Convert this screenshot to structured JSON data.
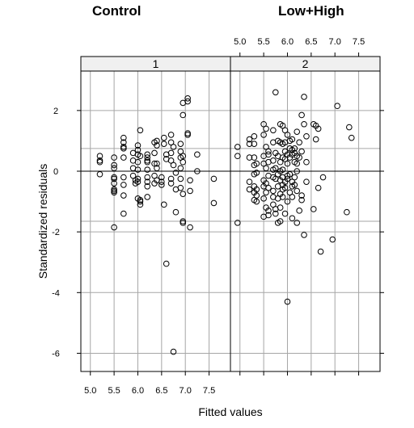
{
  "titles": {
    "left": "Control",
    "right": "Low+High"
  },
  "chart_data": {
    "type": "scatter",
    "xlabel": "Fitted values",
    "ylabel": "Standardized residuals",
    "xlim": [
      4.8,
      7.95
    ],
    "ylim": [
      -6.6,
      3.3
    ],
    "x_ticks": [
      5.0,
      5.5,
      6.0,
      6.5,
      7.0,
      7.5
    ],
    "x_tick_labels": [
      "5.0",
      "5.5",
      "6.0",
      "6.5",
      "7.0",
      "7.5"
    ],
    "y_ticks": [
      -6,
      -4,
      -2,
      0,
      2
    ],
    "y_tick_labels": [
      "-6",
      "-4",
      "-2",
      "0",
      "2"
    ],
    "grid": true,
    "reference_lines": {
      "horizontal": [
        0
      ],
      "grey_horizontal": [
        0.75,
        -1.65
      ]
    },
    "panels": [
      {
        "strip_label": "1",
        "x": [
          5.2,
          5.2,
          5.2,
          5.2,
          5.5,
          5.5,
          5.5,
          5.5,
          5.5,
          5.5,
          5.5,
          5.5,
          5.5,
          5.5,
          5.7,
          5.7,
          5.7,
          5.7,
          5.7,
          5.7,
          5.7,
          5.7,
          5.7,
          5.9,
          5.9,
          5.9,
          5.9,
          5.95,
          5.95,
          6.0,
          6.0,
          6.0,
          6.0,
          6.0,
          6.0,
          6.0,
          6.0,
          6.05,
          6.05,
          6.05,
          6.05,
          6.05,
          6.2,
          6.2,
          6.2,
          6.2,
          6.2,
          6.2,
          6.2,
          6.2,
          6.2,
          6.35,
          6.35,
          6.35,
          6.35,
          6.35,
          6.4,
          6.4,
          6.4,
          6.4,
          6.4,
          6.5,
          6.5,
          6.5,
          6.55,
          6.55,
          6.55,
          6.6,
          6.6,
          6.6,
          6.7,
          6.7,
          6.7,
          6.7,
          6.7,
          6.7,
          6.75,
          6.75,
          6.8,
          6.8,
          6.8,
          6.9,
          6.9,
          6.9,
          6.9,
          6.9,
          6.9,
          6.95,
          6.95,
          6.95,
          6.95,
          6.95,
          6.95,
          6.95,
          7.05,
          7.05,
          7.05,
          7.05,
          7.1,
          7.1,
          7.1,
          7.25,
          7.25,
          7.6,
          7.6,
          6.75
        ],
        "y": [
          0.5,
          0.35,
          0.3,
          -0.1,
          0.45,
          0.2,
          0.1,
          -0.25,
          -0.4,
          -0.6,
          -0.65,
          -0.7,
          -0.2,
          -1.85,
          1.1,
          0.95,
          0.8,
          0.75,
          0.45,
          -0.2,
          -0.45,
          -0.8,
          -1.4,
          0.6,
          0.35,
          0.1,
          -0.15,
          -0.3,
          -0.4,
          0.85,
          0.7,
          0.55,
          0.3,
          0.05,
          -0.25,
          -0.35,
          -0.9,
          1.35,
          0.5,
          -0.95,
          -1.0,
          -1.1,
          0.55,
          0.45,
          0.35,
          0.3,
          0.05,
          -0.2,
          -0.35,
          -0.5,
          -0.85,
          0.95,
          0.6,
          0.25,
          -0.15,
          -0.4,
          1.0,
          0.85,
          0.25,
          0.1,
          -0.3,
          -0.2,
          -0.35,
          -0.45,
          1.1,
          0.9,
          -1.1,
          0.55,
          0.4,
          -3.05,
          1.2,
          0.95,
          0.6,
          0.35,
          -0.25,
          -0.4,
          0.8,
          0.2,
          -0.05,
          -0.6,
          -1.35,
          0.9,
          0.65,
          0.45,
          0.1,
          -0.25,
          -0.55,
          2.25,
          1.85,
          0.5,
          0.3,
          -0.75,
          -1.65,
          -1.7,
          2.4,
          2.3,
          1.25,
          1.2,
          -0.3,
          -0.65,
          -1.85,
          0.55,
          0.0,
          -0.25,
          -1.05,
          -5.95
        ],
        "series_name": ""
      },
      {
        "strip_label": "2",
        "x": [
          4.95,
          4.95,
          4.95,
          5.2,
          5.2,
          5.2,
          5.2,
          5.2,
          5.3,
          5.3,
          5.3,
          5.3,
          5.3,
          5.3,
          5.3,
          5.3,
          5.35,
          5.35,
          5.35,
          5.35,
          5.35,
          5.5,
          5.5,
          5.5,
          5.5,
          5.5,
          5.5,
          5.5,
          5.5,
          5.55,
          5.55,
          5.55,
          5.55,
          5.55,
          5.55,
          5.6,
          5.6,
          5.6,
          5.6,
          5.6,
          5.6,
          5.6,
          5.7,
          5.7,
          5.7,
          5.7,
          5.7,
          5.7,
          5.7,
          5.7,
          5.75,
          5.75,
          5.75,
          5.75,
          5.75,
          5.75,
          5.8,
          5.8,
          5.8,
          5.8,
          5.8,
          5.8,
          5.85,
          5.85,
          5.85,
          5.85,
          5.85,
          5.85,
          5.85,
          5.9,
          5.9,
          5.9,
          5.9,
          5.9,
          5.9,
          5.9,
          5.9,
          5.95,
          5.95,
          5.95,
          5.95,
          5.95,
          5.95,
          5.95,
          6.0,
          6.0,
          6.0,
          6.0,
          6.0,
          6.0,
          6.05,
          6.05,
          6.05,
          6.05,
          6.05,
          6.1,
          6.1,
          6.1,
          6.1,
          6.1,
          6.1,
          6.15,
          6.15,
          6.15,
          6.15,
          6.15,
          6.2,
          6.2,
          6.2,
          6.2,
          6.2,
          6.25,
          6.25,
          6.25,
          6.3,
          6.3,
          6.3,
          6.35,
          6.35,
          6.4,
          6.4,
          6.4,
          6.55,
          6.55,
          6.6,
          6.6,
          6.65,
          6.65,
          6.7,
          6.75,
          6.95,
          7.05,
          7.25,
          7.3,
          7.35,
          6.35,
          6.0,
          5.85,
          6.2,
          6.1,
          6.3
        ],
        "y": [
          0.8,
          0.5,
          -1.7,
          1.05,
          0.9,
          0.45,
          -0.35,
          -0.6,
          1.15,
          0.9,
          0.45,
          0.2,
          -0.1,
          -0.5,
          -0.7,
          -0.95,
          0.25,
          -0.05,
          -0.6,
          -0.8,
          -1.0,
          1.55,
          1.2,
          0.5,
          0.25,
          -0.3,
          -0.5,
          -0.9,
          -1.5,
          1.4,
          0.8,
          0.1,
          -0.4,
          -0.7,
          -1.2,
          0.65,
          0.55,
          0.3,
          -0.15,
          -0.55,
          -1.3,
          -1.45,
          1.35,
          0.95,
          0.35,
          0.05,
          -0.2,
          -0.65,
          -0.85,
          -1.1,
          2.6,
          0.6,
          0.1,
          -0.25,
          -1.25,
          -1.4,
          1.0,
          0.5,
          -0.1,
          -0.5,
          -0.9,
          -1.7,
          1.55,
          0.95,
          0.3,
          0.0,
          -0.3,
          -0.75,
          -1.2,
          1.5,
          0.9,
          0.45,
          0.05,
          -0.2,
          -0.45,
          -0.6,
          -0.85,
          1.35,
          0.95,
          0.65,
          0.4,
          -0.35,
          -0.55,
          -1.4,
          1.2,
          0.55,
          0.25,
          -0.15,
          -0.25,
          -1.0,
          1.0,
          0.75,
          0.45,
          -0.1,
          -0.7,
          1.05,
          0.7,
          0.55,
          -0.35,
          -0.5,
          -0.85,
          0.75,
          0.6,
          0.3,
          -0.2,
          -0.45,
          1.3,
          0.5,
          0.25,
          0.0,
          -0.65,
          0.95,
          0.45,
          -1.3,
          1.85,
          0.65,
          -0.8,
          2.45,
          1.55,
          1.15,
          0.3,
          -0.35,
          1.55,
          -1.25,
          1.5,
          1.05,
          1.4,
          -0.55,
          -2.65,
          -0.2,
          -2.25,
          2.15,
          -1.35,
          1.45,
          1.1,
          -2.1,
          -4.3,
          -1.65,
          -1.7,
          -1.55,
          -0.95
        ],
        "series_name": ""
      }
    ]
  }
}
